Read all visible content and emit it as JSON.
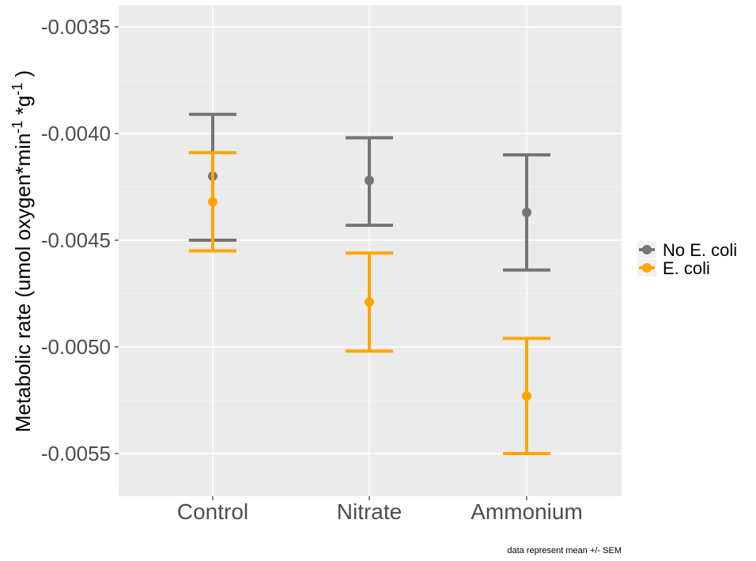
{
  "chart_data": {
    "type": "errorbar",
    "ylabel": {
      "prefix": "Metabolic rate (umol oxygen*min",
      "sup1": "-1",
      "mid": " *g",
      "sup2": "-1",
      "suffix": " )"
    },
    "caption": "data represent mean +/- SEM",
    "categories": [
      "Control",
      "Nitrate",
      "Ammonium"
    ],
    "ylim": [
      -0.0057,
      -0.0034
    ],
    "yticks": [
      -0.0035,
      -0.004,
      -0.0045,
      -0.005,
      -0.0055
    ],
    "ytick_labels": [
      "-0.0035",
      "-0.0040",
      "-0.0045",
      "-0.0050",
      "-0.0055"
    ],
    "grid": true,
    "legend_position": "right",
    "series": [
      {
        "name": "No E. coli",
        "color": "#757575",
        "means": [
          -0.0042,
          -0.00422,
          -0.00437
        ],
        "upper": [
          -0.00391,
          -0.00402,
          -0.0041
        ],
        "lower": [
          -0.0045,
          -0.00443,
          -0.00464
        ]
      },
      {
        "name": "E. coli",
        "color": "#FFA500",
        "means": [
          -0.00432,
          -0.00479,
          -0.00523
        ],
        "upper": [
          -0.00409,
          -0.00456,
          -0.00496
        ],
        "lower": [
          -0.00455,
          -0.00502,
          -0.0055
        ]
      }
    ]
  }
}
